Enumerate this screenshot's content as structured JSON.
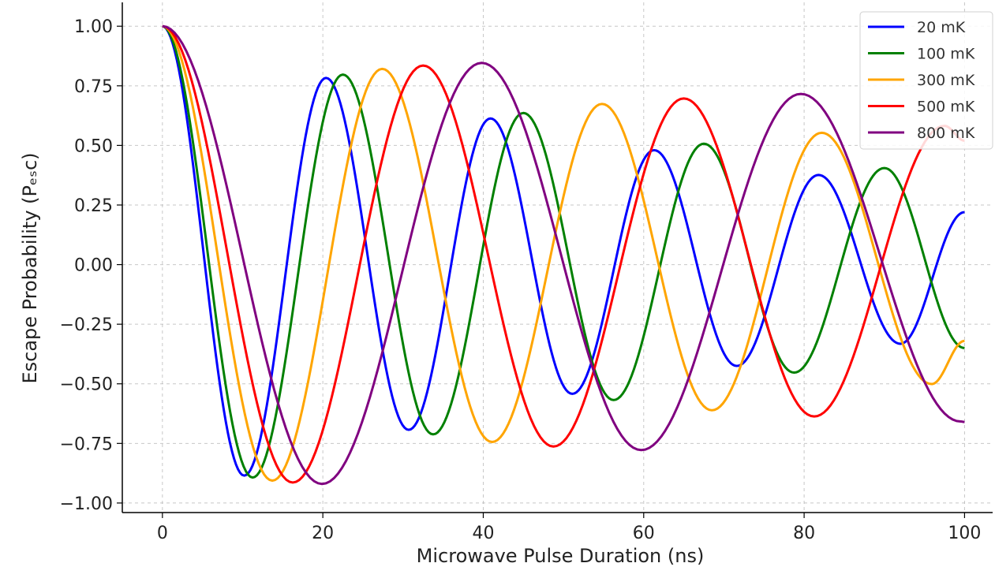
{
  "chart_data": {
    "type": "line",
    "xlabel": "Microwave Pulse Duration (ns)",
    "ylabel": "Escape Probability (Pₑₛc)",
    "xlim": [
      -5,
      103.5
    ],
    "ylim": [
      -1.04,
      1.1
    ],
    "xticks": [
      0,
      20,
      40,
      60,
      80,
      100
    ],
    "xtick_labels": [
      "0",
      "20",
      "40",
      "60",
      "80",
      "100"
    ],
    "yticks": [
      1.0,
      0.75,
      0.5,
      0.25,
      0.0,
      -0.25,
      -0.5,
      -0.75,
      -1.0
    ],
    "ytick_labels": [
      "1.00",
      "0.75",
      "0.50",
      "0.25",
      "0.00",
      "−0.25",
      "−0.50",
      "−0.75",
      "−1.00"
    ],
    "grid": true,
    "legend_position": "top-right",
    "series": [
      {
        "name": "20 mK",
        "color": "#0000ff",
        "x": [
          0,
          10.2,
          20.4,
          30.7,
          40.9,
          51.1,
          61.3,
          71.6,
          81.8,
          92.0,
          100
        ],
        "y": [
          1.0,
          -0.885,
          0.783,
          -0.693,
          0.613,
          -0.542,
          0.48,
          -0.425,
          0.376,
          -0.332,
          0.22
        ]
      },
      {
        "name": "100 mK",
        "color": "#008000",
        "x": [
          0,
          11.25,
          22.5,
          33.75,
          45.0,
          56.25,
          67.5,
          78.75,
          90.0,
          100
        ],
        "y": [
          1.0,
          -0.893,
          0.797,
          -0.712,
          0.636,
          -0.568,
          0.507,
          -0.453,
          0.405,
          -0.35
        ]
      },
      {
        "name": "300 mK",
        "color": "#ffa500",
        "x": [
          0,
          13.7,
          27.4,
          41.1,
          54.8,
          68.5,
          82.2,
          95.9,
          100
        ],
        "y": [
          1.0,
          -0.906,
          0.821,
          -0.744,
          0.674,
          -0.611,
          0.553,
          -0.501,
          -0.32
        ]
      },
      {
        "name": "500 mK",
        "color": "#ff0000",
        "x": [
          0,
          16.25,
          32.5,
          48.75,
          65.0,
          81.25,
          97.5,
          100
        ],
        "y": [
          1.0,
          -0.914,
          0.835,
          -0.763,
          0.697,
          -0.637,
          0.582,
          0.52
        ]
      },
      {
        "name": "800 mK",
        "color": "#800080",
        "x": [
          0,
          19.9,
          39.8,
          59.7,
          79.6,
          99.5,
          100
        ],
        "y": [
          1.0,
          -0.92,
          0.846,
          -0.778,
          0.716,
          -0.658,
          -0.66
        ]
      }
    ]
  }
}
